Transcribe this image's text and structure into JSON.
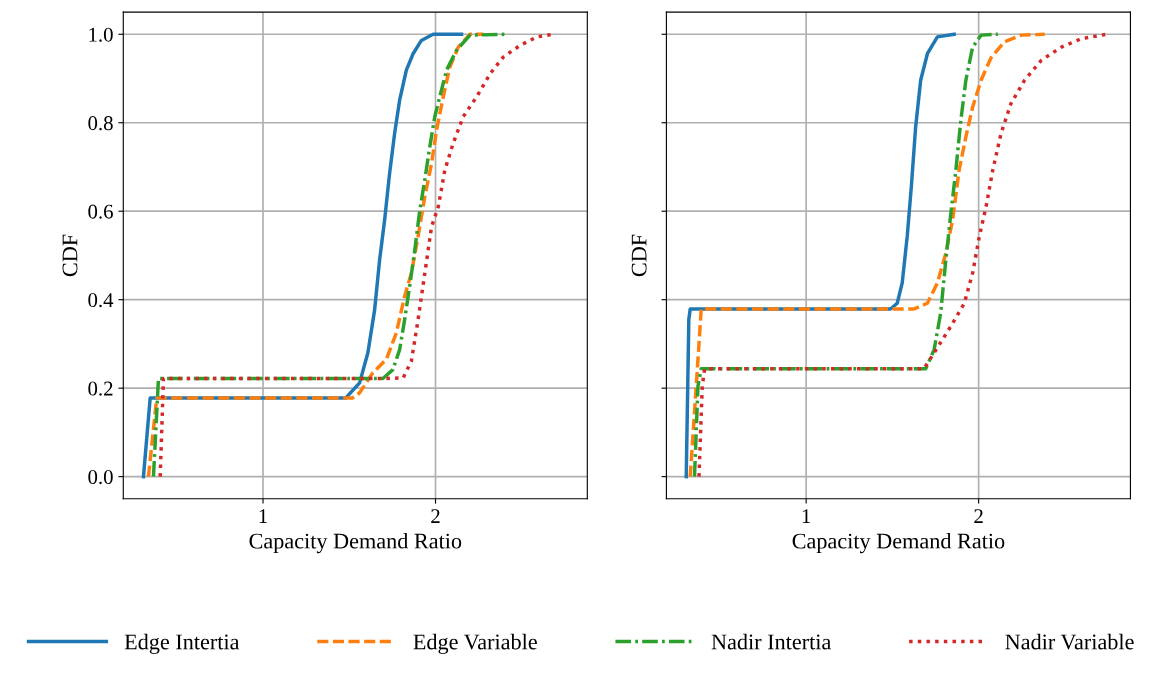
{
  "chart_data": [
    {
      "type": "line",
      "xlabel": "Capacity Demand Ratio",
      "ylabel": "CDF",
      "xlim": [
        0.19,
        2.88
      ],
      "xticks": [
        1,
        2
      ],
      "ylim": [
        -0.05,
        1.05
      ],
      "yticks": [
        {
          "value": 0.0,
          "label": "0.0"
        },
        {
          "value": 0.2,
          "label": "0.2"
        },
        {
          "value": 0.4,
          "label": "0.4"
        },
        {
          "value": 0.6,
          "label": "0.6"
        },
        {
          "value": 0.8,
          "label": "0.8"
        },
        {
          "value": 1.0,
          "label": "1.0"
        }
      ],
      "grid": true,
      "legend": "bottom",
      "series": [
        {
          "name": "Edge Intertia",
          "color": "#1f77b4",
          "line_style": "solid",
          "x": [
            0.307,
            0.346,
            1.48,
            1.56,
            1.608,
            1.647,
            1.676,
            1.705,
            1.734,
            1.763,
            1.792,
            1.831,
            1.87,
            1.918,
            1.986,
            2.151
          ],
          "values": [
            0,
            0.178,
            0.178,
            0.212,
            0.28,
            0.377,
            0.49,
            0.58,
            0.686,
            0.776,
            0.851,
            0.919,
            0.956,
            0.986,
            1.0,
            1.0
          ]
        },
        {
          "name": "Edge Variable",
          "color": "#ff7f0e",
          "line_style": "dashed",
          "x": [
            0.336,
            0.384,
            1.52,
            1.559,
            1.637,
            1.715,
            1.773,
            1.821,
            1.86,
            1.899,
            1.938,
            1.977,
            2.006,
            2.045,
            2.083,
            2.132,
            2.2,
            2.278
          ],
          "values": [
            0,
            0.178,
            0.178,
            0.189,
            0.235,
            0.265,
            0.325,
            0.408,
            0.46,
            0.543,
            0.633,
            0.708,
            0.783,
            0.859,
            0.926,
            0.971,
            1.0,
            1.0
          ]
        },
        {
          "name": "Nadir Intertia",
          "color": "#2ca02c",
          "line_style": "dashdot",
          "x": [
            0.365,
            0.394,
            1.695,
            1.753,
            1.792,
            1.821,
            1.85,
            1.88,
            1.909,
            1.938,
            1.967,
            1.996,
            2.025,
            2.064,
            2.122,
            2.2,
            2.423
          ],
          "values": [
            0,
            0.222,
            0.222,
            0.242,
            0.287,
            0.355,
            0.43,
            0.513,
            0.603,
            0.671,
            0.746,
            0.814,
            0.859,
            0.919,
            0.964,
            0.998,
            1.0
          ]
        },
        {
          "name": "Nadir Variable",
          "color": "#d62728",
          "line_style": "dotted",
          "x": [
            0.404,
            0.423,
            1.715,
            1.812,
            1.86,
            1.899,
            1.938,
            1.977,
            2.016,
            2.054,
            2.103,
            2.161,
            2.239,
            2.317,
            2.394,
            2.491,
            2.588,
            2.68
          ],
          "values": [
            0,
            0.222,
            0.222,
            0.223,
            0.261,
            0.355,
            0.46,
            0.565,
            0.61,
            0.693,
            0.754,
            0.814,
            0.859,
            0.911,
            0.949,
            0.975,
            0.994,
            1.0
          ]
        }
      ]
    },
    {
      "type": "line",
      "xlabel": "Capacity Demand Ratio",
      "ylabel": "CDF",
      "xlim": [
        0.19,
        2.88
      ],
      "xticks": [
        1,
        2
      ],
      "ylim": [
        -0.05,
        1.05
      ],
      "yticks": [
        {
          "value": 0.0,
          "label": null
        },
        {
          "value": 0.2,
          "label": null
        },
        {
          "value": 0.4,
          "label": null
        },
        {
          "value": 0.6,
          "label": null
        },
        {
          "value": 0.8,
          "label": null
        },
        {
          "value": 1.0,
          "label": null
        }
      ],
      "tick_labels": "x",
      "grid": true,
      "series": [
        {
          "color": "#1f77b4",
          "line_style": "solid",
          "x": [
            0.305,
            0.32,
            0.328,
            1.489,
            1.528,
            1.557,
            1.586,
            1.61,
            1.635,
            1.664,
            1.703,
            1.761,
            1.858
          ],
          "values": [
            0,
            0.355,
            0.379,
            0.379,
            0.392,
            0.438,
            0.543,
            0.656,
            0.791,
            0.896,
            0.956,
            0.994,
            1.0
          ]
        },
        {
          "color": "#ff7f0e",
          "line_style": "dashed",
          "x": [
            0.328,
            0.363,
            0.392,
            1.625,
            1.703,
            1.761,
            1.81,
            1.849,
            1.887,
            1.926,
            1.965,
            2.014,
            2.072,
            2.15,
            2.247,
            2.383
          ],
          "values": [
            0,
            0.205,
            0.379,
            0.379,
            0.392,
            0.438,
            0.505,
            0.58,
            0.693,
            0.768,
            0.835,
            0.896,
            0.947,
            0.983,
            0.998,
            1.0
          ]
        },
        {
          "color": "#2ca02c",
          "line_style": "dashdot",
          "x": [
            0.353,
            0.373,
            0.392,
            1.693,
            1.742,
            1.78,
            1.81,
            1.839,
            1.868,
            1.897,
            1.926,
            1.965,
            2.014,
            2.111
          ],
          "values": [
            0,
            0.205,
            0.244,
            0.244,
            0.287,
            0.37,
            0.49,
            0.595,
            0.693,
            0.806,
            0.896,
            0.971,
            0.998,
            1.0
          ]
        },
        {
          "color": "#d62728",
          "line_style": "dotted",
          "x": [
            0.379,
            0.398,
            0.412,
            1.683,
            1.742,
            1.839,
            1.917,
            1.965,
            2.004,
            2.043,
            2.082,
            2.13,
            2.188,
            2.266,
            2.363,
            2.48,
            2.596,
            2.742
          ],
          "values": [
            0,
            0.205,
            0.244,
            0.244,
            0.28,
            0.34,
            0.392,
            0.46,
            0.543,
            0.61,
            0.693,
            0.776,
            0.844,
            0.896,
            0.941,
            0.971,
            0.99,
            1.0
          ]
        }
      ]
    }
  ]
}
